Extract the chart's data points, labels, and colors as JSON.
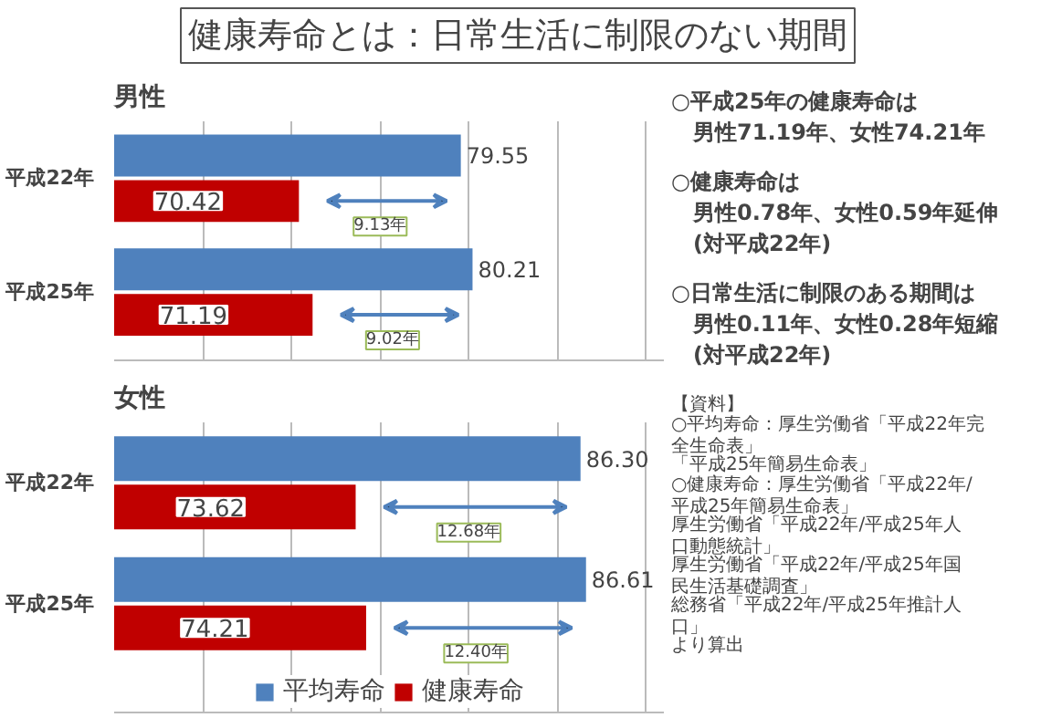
{
  "chart_data": [
    {
      "type": "bar",
      "orientation": "horizontal",
      "title": "健康寿命とは：日常生活に制限のない期間",
      "subtitle": "男性",
      "categories": [
        "平成22年",
        "平成25年"
      ],
      "series": [
        {
          "color": "#4f81bd",
          "values": [
            79.55,
            80.21
          ],
          "value_labels": [
            "79.55",
            "80.21"
          ]
        },
        {
          "color": "#c00000",
          "values": [
            70.42,
            71.19
          ],
          "value_labels": [
            "70.42",
            "71.19"
          ]
        }
      ],
      "xlim": [
        60,
        91
      ],
      "grid": "x",
      "tick_labels": "y",
      "annotations": [
        {
          "text": "9.13年",
          "x": 75,
          "y": "平成22年"
        },
        {
          "text": "9.02年",
          "x": 75.7,
          "y": "平成25年"
        },
        "○平成25年の健康寿命は",
        "男性71.19年、女性74.21年",
        "○健康寿命は",
        "男性0.78年、女性0.59年延伸",
        "(対平成22年)",
        "○日常生活に制限のある期間は",
        "男性0.11年、女性0.28年短縮",
        "(対平成22年)"
      ]
    },
    {
      "type": "bar",
      "orientation": "horizontal",
      "title": "女性",
      "categories": [
        "平成22年",
        "平成25年"
      ],
      "series": [
        {
          "name": "平均寿命",
          "color": "#4f81bd",
          "values": [
            86.3,
            86.61
          ],
          "value_labels": [
            "86.30",
            "86.61"
          ]
        },
        {
          "name": "健康寿命",
          "color": "#c00000",
          "values": [
            73.62,
            74.21
          ],
          "value_labels": [
            "73.62",
            "74.21"
          ]
        }
      ],
      "xlim": [
        60,
        91
      ],
      "grid": "x",
      "tick_labels": "y",
      "legend": "bottom",
      "annotations": [
        {
          "text": "12.68年",
          "x": 80,
          "y": "平成22年"
        },
        {
          "text": "12.40年",
          "x": 80.4,
          "y": "平成25年"
        },
        "【資料】",
        "○平均寿命：厚生労働省「平成22年完全生命表」",
        "「平成25年簡易生命表」",
        "○健康寿命：厚生労働省「平成22年/平成25年簡易生命表」",
        "厚生労働省「平成22年/平成25年人口動態統計」",
        "厚生労働省「平成22年/平成25年国民生活基礎調査」",
        "総務省「平成22年/平成25年推計人口」",
        "より算出"
      ]
    }
  ]
}
